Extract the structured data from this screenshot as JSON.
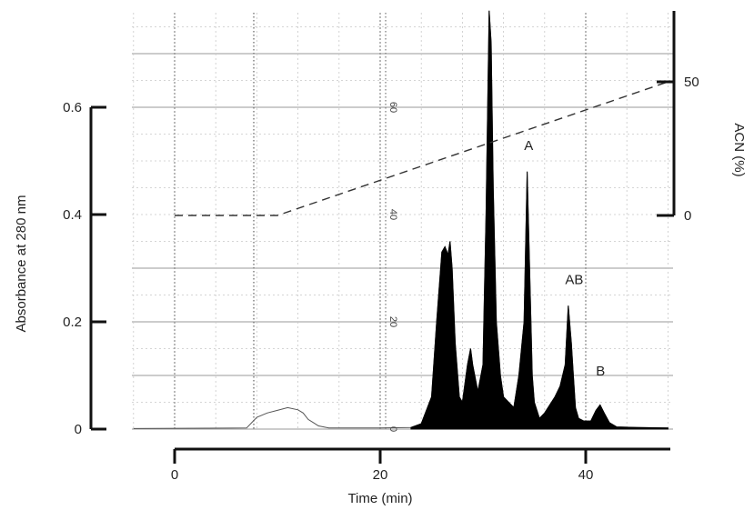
{
  "chart_data": {
    "type": "area",
    "xlabel": "Time (min)",
    "ylabel": "Absorbance at 280 nm",
    "y2label": "ACN (%)",
    "xlim": [
      0,
      48
    ],
    "ylim": [
      0,
      0.8
    ],
    "y2lim": [
      0,
      75
    ],
    "x_ticks": [
      "0",
      "20",
      "40"
    ],
    "x_tick_values": [
      0,
      20,
      40
    ],
    "y_ticks": [
      "0",
      "0.2",
      "0.4",
      "0.6"
    ],
    "y_tick_values": [
      0,
      0.2,
      0.4,
      0.6
    ],
    "y2_ticks": [
      "0",
      "50"
    ],
    "y2_tick_values": [
      0,
      50
    ],
    "grid_scale_labels": [
      "0",
      "20",
      "40",
      "60"
    ],
    "grid_scale_values": [
      0,
      0.2,
      0.4,
      0.6
    ],
    "grid": true,
    "series": [
      {
        "kind": "absorbance_trace",
        "style": "filled",
        "color": "#000000",
        "x": [
          -4,
          7,
          7.5,
          8,
          9,
          10,
          11,
          12,
          12.5,
          13,
          13.5,
          14,
          15,
          20,
          23,
          24,
          25,
          25.5,
          26,
          26.3,
          26.6,
          26.8,
          27,
          27.3,
          27.7,
          28,
          28.5,
          28.8,
          29,
          29.5,
          30,
          30.3,
          30.6,
          30.8,
          31,
          31.3,
          31.7,
          32,
          33,
          33.5,
          34,
          34.3,
          34.6,
          34.8,
          35,
          35.5,
          36,
          37,
          37.5,
          38,
          38.3,
          38.6,
          38.8,
          39,
          39.3,
          39.8,
          40.5,
          41,
          41.4,
          41.8,
          42.3,
          43,
          45,
          48
        ],
        "y": [
          0.001,
          0.002,
          0.012,
          0.022,
          0.03,
          0.035,
          0.04,
          0.036,
          0.03,
          0.018,
          0.012,
          0.006,
          0.002,
          0.002,
          0.003,
          0.01,
          0.06,
          0.2,
          0.33,
          0.34,
          0.325,
          0.35,
          0.3,
          0.16,
          0.06,
          0.05,
          0.12,
          0.15,
          0.12,
          0.07,
          0.12,
          0.4,
          0.78,
          0.72,
          0.45,
          0.2,
          0.1,
          0.06,
          0.04,
          0.1,
          0.2,
          0.48,
          0.25,
          0.1,
          0.05,
          0.02,
          0.03,
          0.06,
          0.08,
          0.12,
          0.23,
          0.16,
          0.1,
          0.04,
          0.02,
          0.015,
          0.015,
          0.035,
          0.045,
          0.03,
          0.012,
          0.004,
          0.003,
          0.002
        ]
      },
      {
        "kind": "acn_gradient",
        "style": "dashed",
        "axis": "right",
        "x": [
          0,
          10,
          48
        ],
        "y": [
          0,
          0,
          50
        ]
      }
    ],
    "annotations": [
      {
        "text": "A",
        "x": 34,
        "y": 0.52
      },
      {
        "text": "AB",
        "x": 38,
        "y": 0.27
      },
      {
        "text": "B",
        "x": 41,
        "y": 0.1
      }
    ]
  }
}
